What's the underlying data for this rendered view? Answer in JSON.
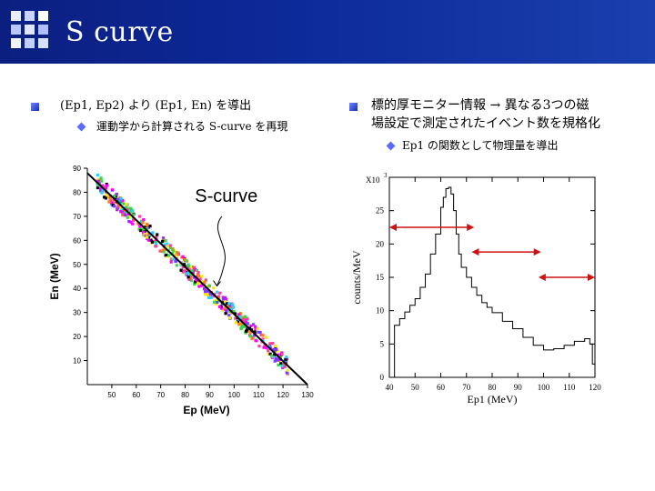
{
  "header": {
    "title": "S curve",
    "background_color": "#0d2a9a"
  },
  "left_column": {
    "bullet_text": "(Ep1, Ep2) より (Ep1, En) を導出",
    "sub_bullet_text": "運動学から計算される S-curve を再現"
  },
  "right_column": {
    "bullet_line1": "標的厚モニター情報 → 異なる3つの磁",
    "bullet_line2": "場設定で測定されたイベント数を規格化",
    "sub_bullet_text": "Ep1 の関数として物理量を導出"
  },
  "chart_data": [
    {
      "type": "scatter",
      "annotation": "S-curve",
      "xlabel": "Ep (MeV)",
      "ylabel": "En (MeV)",
      "xlim": [
        40,
        130
      ],
      "ylim": [
        0,
        90
      ],
      "x_ticks": [
        "50",
        "60",
        "70",
        "80",
        "90",
        "100",
        "110",
        "120",
        "130"
      ],
      "y_ticks": [
        "10",
        "20",
        "30",
        "40",
        "50",
        "60",
        "70",
        "80",
        "90"
      ],
      "series": [
        {
          "kind": "line",
          "x": [
            40,
            130
          ],
          "y": [
            88,
            0
          ],
          "color": "#000000"
        }
      ],
      "cloud_x_range": [
        44,
        122
      ],
      "cloud_colors": [
        "#ff3fa0",
        "#ff00ff",
        "#39d64a",
        "#ffe600",
        "#2fd0ff",
        "#ff7a1a",
        "#7a3cff",
        "#000000"
      ]
    },
    {
      "type": "line",
      "ylabel": "counts/MeV",
      "xlabel": "Ep1 (MeV)",
      "multiplier_label": "X10",
      "multiplier_exp": "3",
      "xlim": [
        40,
        120
      ],
      "ylim": [
        0,
        30000
      ],
      "x_ticks": [
        "40",
        "50",
        "60",
        "70",
        "80",
        "90",
        "100",
        "110",
        "120"
      ],
      "y_ticks": [
        "0",
        "5",
        "10",
        "15",
        "20",
        "25"
      ],
      "x": [
        40,
        42,
        44,
        46,
        48,
        50,
        52,
        54,
        56,
        58,
        60,
        61,
        62,
        63,
        64,
        65,
        66,
        67,
        68,
        70,
        72,
        74,
        76,
        78,
        80,
        84,
        88,
        92,
        96,
        100,
        104,
        108,
        112,
        116,
        118,
        119,
        120
      ],
      "y": [
        0,
        7800,
        8800,
        9800,
        10800,
        11800,
        13500,
        15500,
        18500,
        21500,
        25500,
        27000,
        28300,
        28500,
        27500,
        25000,
        21500,
        18500,
        16500,
        15000,
        13500,
        12300,
        11200,
        10500,
        9700,
        8400,
        7300,
        6000,
        4800,
        4100,
        4300,
        4800,
        5400,
        5800,
        5000,
        2000,
        0
      ],
      "arrows": [
        {
          "x": [
            40,
            73
          ],
          "y": 22500,
          "color": "#cc1111",
          "direction": "both"
        },
        {
          "x": [
            72,
            99
          ],
          "y": 18800,
          "color": "#cc1111",
          "direction": "both"
        },
        {
          "x": [
            98,
            120
          ],
          "y": 15000,
          "color": "#cc1111",
          "direction": "both"
        }
      ]
    }
  ]
}
